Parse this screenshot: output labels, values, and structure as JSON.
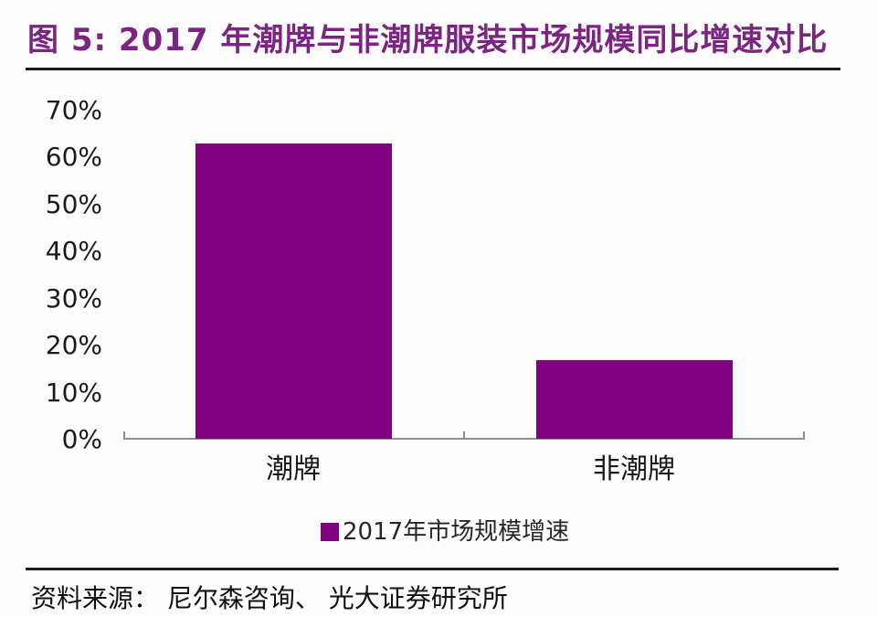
{
  "figure": {
    "title": "图 5: 2017 年潮牌与非潮牌服装市场规模同比增速对比",
    "source": "资料来源： 尼尔森咨询、 光大证券研究所"
  },
  "colors": {
    "bar": "#800080",
    "title": "#7B2482",
    "axis": "#8C8C8C",
    "text": "#1A1A1A",
    "rule": "#1D1D1D"
  },
  "chart_data": {
    "type": "bar",
    "title": "2017 年潮牌与非潮牌服装市场规模同比增速对比",
    "categories": [
      "潮牌",
      "非潮牌"
    ],
    "series": [
      {
        "name": "2017年市场规模增速",
        "values": [
          63,
          17
        ]
      }
    ],
    "unit": "%",
    "xlabel": "",
    "ylabel": "",
    "ylim": [
      0,
      70
    ],
    "y_tick_step": 10,
    "grid": false,
    "legend_position": "bottom",
    "bar_color": "#800080"
  }
}
